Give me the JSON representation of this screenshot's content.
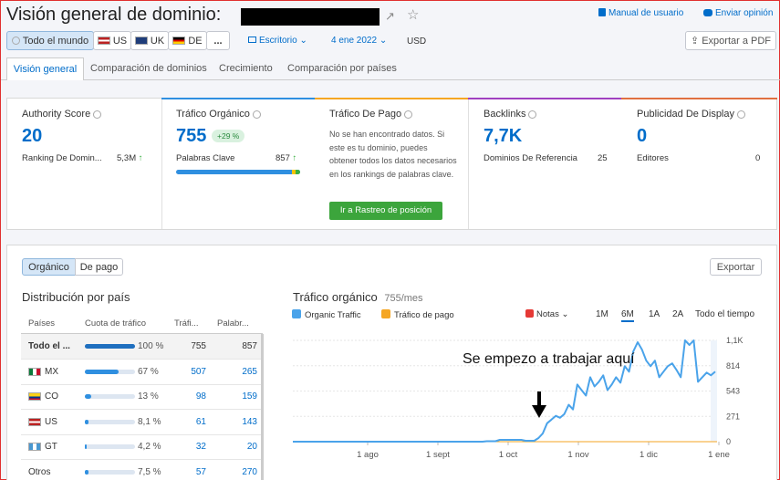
{
  "header": {
    "title": "Visión general de dominio:",
    "manual": "Manual de usuario",
    "feedback": "Enviar opinión"
  },
  "filters": {
    "all": "Todo el mundo",
    "countries": [
      "US",
      "UK",
      "DE"
    ],
    "more": "...",
    "device": "Escritorio",
    "date": "4 ene 2022",
    "currency": "USD",
    "export_pdf": "Exportar a PDF"
  },
  "tabs": [
    "Visión general",
    "Comparación de dominios",
    "Crecimiento",
    "Comparación por países"
  ],
  "cards": {
    "authority": {
      "title": "Authority Score",
      "value": "20",
      "sub_label": "Ranking De Domin...",
      "sub_value": "5,3M"
    },
    "organic": {
      "title": "Tráfico Orgánico",
      "value": "755",
      "badge": "+29 %",
      "sub_label": "Palabras Clave",
      "sub_value": "857"
    },
    "paid": {
      "title": "Tráfico De Pago",
      "message": "No se han encontrado datos. Si este es tu dominio, puedes obtener todos los datos necesarios en los rankings de palabras clave.",
      "button": "Ir a Rastreo de posición"
    },
    "backlinks": {
      "title": "Backlinks",
      "value": "7,7K",
      "sub_label": "Dominios De Referencia",
      "sub_value": "25"
    },
    "display": {
      "title": "Publicidad De Display",
      "value": "0",
      "sub_label": "Editores",
      "sub_value": "0"
    }
  },
  "section": {
    "toggle_organic": "Orgánico",
    "toggle_paid": "De pago",
    "export": "Exportar"
  },
  "distribution": {
    "title": "Distribución por país",
    "headers": [
      "Países",
      "Cuota de tráfico",
      "Tráfi...",
      "Palabr..."
    ],
    "rows": [
      {
        "country": "Todo el ...",
        "share": "100 %",
        "share_pct": 100,
        "traffic": "755",
        "keywords": "857",
        "bold": true
      },
      {
        "country": "MX",
        "share": "67 %",
        "share_pct": 67,
        "traffic": "507",
        "keywords": "265"
      },
      {
        "country": "CO",
        "share": "13 %",
        "share_pct": 13,
        "traffic": "98",
        "keywords": "159"
      },
      {
        "country": "US",
        "share": "8,1 %",
        "share_pct": 8.1,
        "traffic": "61",
        "keywords": "143"
      },
      {
        "country": "GT",
        "share": "4,2 %",
        "share_pct": 4.2,
        "traffic": "32",
        "keywords": "20"
      },
      {
        "country": "Otros",
        "share": "7,5 %",
        "share_pct": 7.5,
        "traffic": "57",
        "keywords": "270"
      }
    ]
  },
  "traffic_chart": {
    "title": "Tráfico orgánico",
    "subtitle": "755/mes",
    "legend_organic": "Organic Traffic",
    "legend_paid": "Tráfico de pago",
    "notes": "Notas",
    "ranges": [
      "1M",
      "6M",
      "1A",
      "2A",
      "Todo el tiempo"
    ],
    "active_range": "6M",
    "annotation": "Se empezo a trabajar aquí"
  },
  "chart_data": {
    "type": "line",
    "x_ticks": [
      "1 ago",
      "1 sept",
      "1 oct",
      "1 nov",
      "1 dic",
      "1 ene"
    ],
    "y_ticks": [
      "1,1K",
      "814",
      "543",
      "271",
      "0"
    ],
    "ylim": [
      0,
      1100
    ],
    "colors": {
      "organic": "#4aa3ea",
      "paid": "#f5a623"
    },
    "series": [
      {
        "name": "Organic Traffic",
        "values": [
          0,
          0,
          0,
          0,
          0,
          0,
          0,
          0,
          0,
          0,
          0,
          0,
          0,
          0,
          0,
          0,
          0,
          0,
          0,
          0,
          0,
          0,
          0,
          0,
          0,
          0,
          0,
          0,
          0,
          0,
          0,
          0,
          0,
          0,
          0,
          0,
          0,
          0,
          0,
          0,
          0,
          0,
          0,
          0,
          0,
          5,
          5,
          5,
          20,
          20,
          20,
          20,
          20,
          20,
          10,
          10,
          10,
          40,
          90,
          200,
          240,
          280,
          260,
          300,
          400,
          350,
          620,
          560,
          500,
          700,
          600,
          650,
          720,
          560,
          620,
          700,
          640,
          820,
          760,
          980,
          1080,
          1000,
          880,
          820,
          880,
          700,
          760,
          820,
          850,
          780,
          700,
          1100,
          1050,
          1100,
          650,
          700,
          750,
          720,
          760
        ]
      },
      {
        "name": "Tráfico de pago",
        "values": []
      }
    ]
  }
}
